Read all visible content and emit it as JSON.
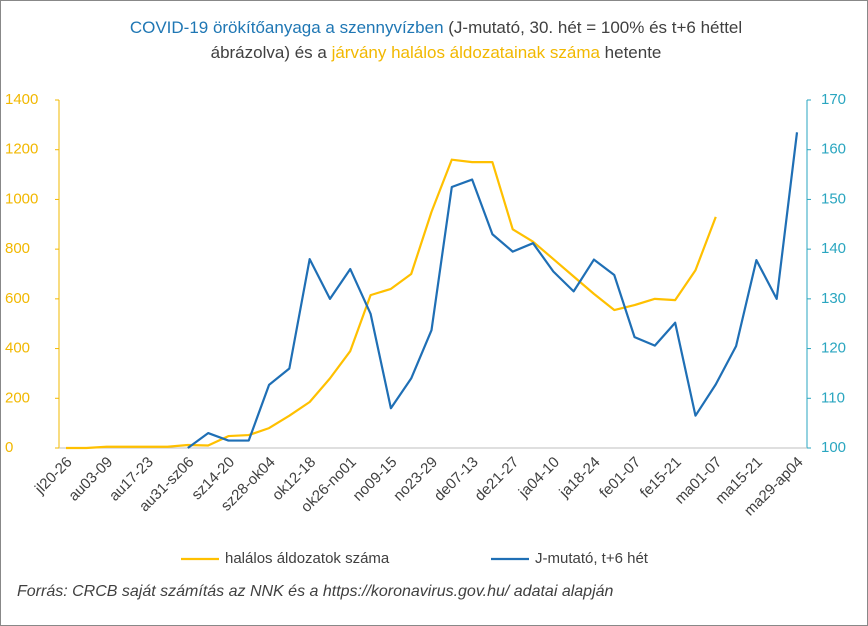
{
  "chart_data": {
    "type": "line",
    "title_parts": [
      {
        "text": "COVID-19 örökítőanyaga a szennyvízben",
        "color": "#1f77b4"
      },
      {
        "text": " (J-mutató, 30. hét = 100% és t+6 héttel ábrázolva) és a ",
        "color": "#404040"
      },
      {
        "text": "járvány halálos áldozatainak száma",
        "color": "#f2b800"
      },
      {
        "text": " hetente",
        "color": "#404040"
      }
    ],
    "categories": [
      "jl20-26",
      null,
      "au03-09",
      null,
      "au17-23",
      null,
      "au31-sz06",
      null,
      "sz14-20",
      null,
      "sz28-ok04",
      null,
      "ok12-18",
      null,
      "ok26-no01",
      null,
      "no09-15",
      null,
      "no23-29",
      null,
      "de07-13",
      null,
      "de21-27",
      null,
      "ja04-10",
      null,
      "ja18-24",
      null,
      "fe01-07",
      null,
      "fe15-21",
      null,
      "ma01-07",
      null,
      "ma15-21",
      null,
      "ma29-ap04"
    ],
    "series": [
      {
        "name": "halálos áldozatok száma",
        "color": "#ffc000",
        "axis": "y",
        "values": [
          0,
          0,
          5,
          5,
          5,
          5,
          12,
          10,
          48,
          52,
          80,
          130,
          185,
          280,
          390,
          615,
          640,
          700,
          950,
          1160,
          1150,
          1150,
          880,
          830,
          760,
          690,
          620,
          555,
          575,
          600,
          595,
          715,
          930,
          null,
          null,
          null,
          null
        ]
      },
      {
        "name": "J-mutató, t+6 hét",
        "color": "#1f6fb5",
        "axis": "y2",
        "values": [
          null,
          null,
          null,
          null,
          null,
          null,
          100,
          103,
          101.5,
          101.5,
          112.7,
          116,
          138,
          130,
          136,
          127,
          108,
          114,
          123.7,
          152.5,
          154,
          143,
          139.5,
          141.2,
          135.5,
          131.5,
          137.9,
          134.8,
          122.3,
          120.6,
          125.2,
          106.5,
          112.8,
          120.5,
          137.8,
          130,
          163.5
        ]
      }
    ],
    "ylim": [
      0,
      1400
    ],
    "yticks": [
      0,
      200,
      400,
      600,
      800,
      1000,
      1200,
      1400
    ],
    "ycolor": "#f2b800",
    "y2lim": [
      100,
      170
    ],
    "y2ticks": [
      100,
      110,
      120,
      130,
      140,
      150,
      160,
      170
    ],
    "y2color": "#2aa6c0",
    "source": "Forrás: CRCB saját számítás az NNK és a https://koronavirus.gov.hu/ adatai alapján"
  }
}
